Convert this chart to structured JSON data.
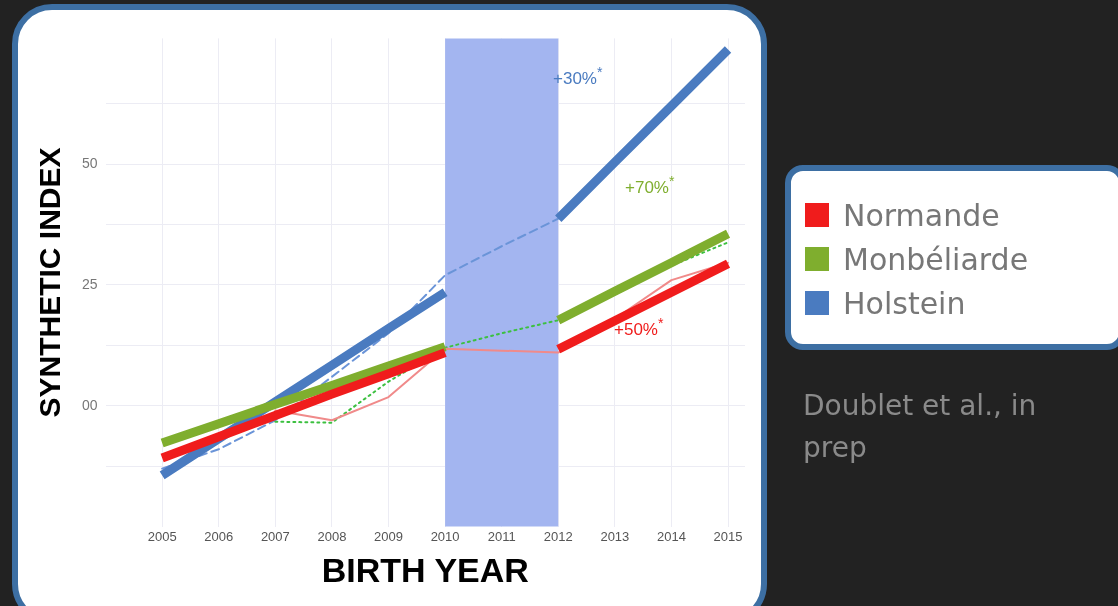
{
  "chart_data": {
    "type": "line",
    "xlabel": "BIRTH YEAR",
    "ylabel": "SYNTHETIC INDEX",
    "x": [
      2005,
      2006,
      2007,
      2008,
      2009,
      2010,
      2011,
      2012,
      2013,
      2014,
      2015
    ],
    "series": [
      {
        "name": "Normande",
        "color": "#f01c1c",
        "values": [
          -10.8,
          -6.4,
          -2,
          2.4,
          6.6,
          11,
          null,
          11.7,
          17.6,
          23.5,
          29.4
        ]
      },
      {
        "name": "Monbéliarde",
        "color": "#7fae2e",
        "values": [
          -7.7,
          -3.7,
          0.3,
          4.2,
          8.2,
          12.2,
          null,
          17.7,
          23.7,
          29.6,
          35.6
        ]
      },
      {
        "name": "Holstein",
        "color": "#4a7bc0",
        "values": [
          -14.4,
          -6.8,
          0.8,
          8.4,
          16,
          23.5,
          null,
          38.7,
          50.4,
          62,
          73.7
        ]
      },
      {
        "color": "#f08a8a",
        "line_style": "solid",
        "x": [
          2007,
          2008,
          2009,
          2010,
          2011,
          2012,
          2013,
          2014,
          2015
        ],
        "values": [
          -1,
          -3,
          1.8,
          11.8,
          11.4,
          11,
          18,
          26,
          29.6
        ]
      },
      {
        "color": "#3cc040",
        "line_style": "dotted",
        "x": [
          2007,
          2008,
          2009,
          2010,
          2011,
          2012,
          2013,
          2014,
          2015
        ],
        "values": [
          -3.3,
          -3.5,
          5,
          12,
          15,
          17.7,
          23,
          29,
          33.8
        ]
      },
      {
        "color": "#6a94d8",
        "line_style": "dashed",
        "x": [
          2005,
          2006,
          2007,
          2008,
          2009,
          2010,
          2011,
          2012
        ],
        "values": [
          -13,
          -9,
          -3,
          6,
          15,
          27,
          33,
          38.7
        ]
      }
    ],
    "xlim": [
      2004,
      2015.3
    ],
    "xticks": [
      2005,
      2006,
      2007,
      2008,
      2009,
      2010,
      2011,
      2012,
      2013,
      2014,
      2015
    ],
    "ylim": [
      -25,
      76
    ],
    "yticks": [
      {
        "value": -12.5,
        "label": null
      },
      {
        "value": 0,
        "label": "00"
      },
      {
        "value": 12.5,
        "label": null
      },
      25,
      {
        "value": 37.5,
        "label": null
      },
      50,
      {
        "value": 62.5,
        "label": null
      }
    ],
    "bands": [
      {
        "axis": "x",
        "from": 2010,
        "to": 2012,
        "color": "#a3b5f0"
      }
    ],
    "annotations": [
      "+30%$^{*}$",
      "+70%$^{*}$",
      "+50%$^{*}$",
      "Doublet et al., in prep"
    ],
    "grid": true,
    "legend": "right"
  }
}
